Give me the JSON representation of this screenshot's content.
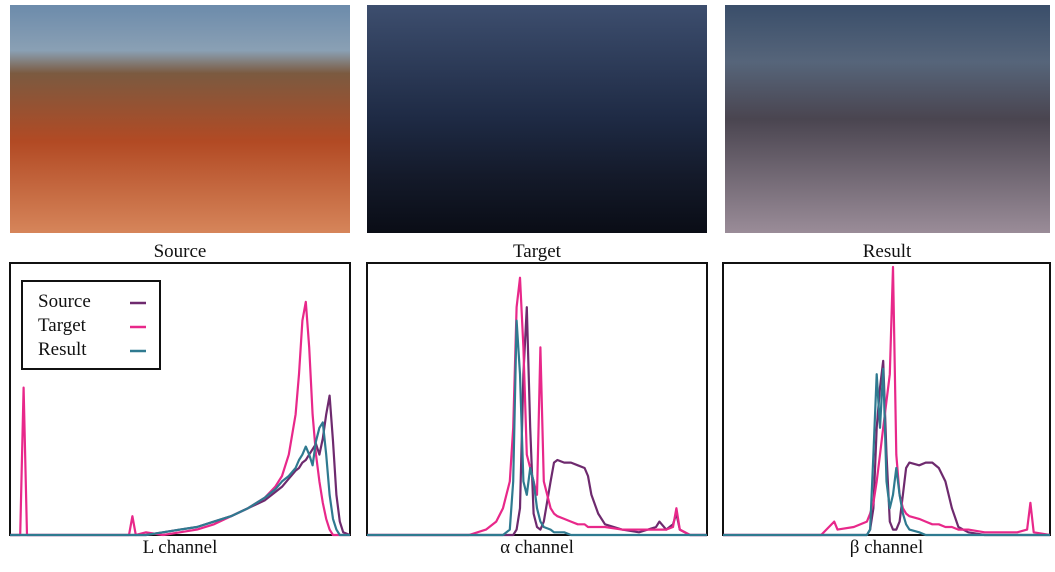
{
  "images": [
    {
      "caption": "Source"
    },
    {
      "caption": "Target"
    },
    {
      "caption": "Result"
    }
  ],
  "chart_data": [
    {
      "type": "line",
      "xlabel": "L channel",
      "legend": "upper left",
      "xlim": [
        0,
        100
      ],
      "ylim": [
        0,
        100
      ],
      "x": [
        0,
        3,
        4,
        5,
        10,
        20,
        30,
        35,
        36,
        37,
        40,
        45,
        50,
        55,
        60,
        65,
        70,
        75,
        78,
        80,
        82,
        84,
        85,
        86,
        87,
        88,
        89,
        90,
        91,
        92,
        93,
        94,
        95,
        96,
        97,
        98,
        100
      ],
      "series": [
        {
          "name": "Source",
          "color": "#6e2a6e",
          "values": [
            0,
            0,
            0,
            0,
            0,
            0,
            0,
            0,
            0,
            0,
            0,
            1,
            2,
            3,
            5,
            7,
            10,
            13,
            16,
            18,
            21,
            24,
            25,
            27,
            28,
            30,
            32,
            34,
            30,
            36,
            45,
            52,
            35,
            15,
            5,
            1,
            0
          ]
        },
        {
          "name": "Target",
          "color": "#e8288a",
          "values": [
            0,
            0,
            55,
            0,
            0,
            0,
            0,
            0,
            7,
            0,
            1,
            0,
            1,
            2,
            4,
            7,
            10,
            14,
            18,
            22,
            30,
            45,
            60,
            80,
            87,
            70,
            45,
            30,
            20,
            12,
            6,
            2,
            0,
            0,
            0,
            0,
            0
          ]
        },
        {
          "name": "Result",
          "color": "#2f7a90",
          "values": [
            0,
            0,
            0,
            0,
            0,
            0,
            0,
            0,
            0,
            0,
            0,
            1,
            2,
            3,
            5,
            7,
            10,
            14,
            17,
            20,
            22,
            25,
            28,
            30,
            33,
            30,
            26,
            35,
            40,
            42,
            30,
            15,
            6,
            2,
            0,
            0,
            0
          ]
        }
      ]
    },
    {
      "type": "line",
      "xlabel": "α channel",
      "xlim": [
        0,
        100
      ],
      "ylim": [
        0,
        100
      ],
      "x": [
        0,
        30,
        35,
        38,
        40,
        42,
        43,
        44,
        45,
        46,
        47,
        48,
        49,
        50,
        51,
        52,
        54,
        55,
        56,
        58,
        60,
        62,
        64,
        65,
        66,
        68,
        70,
        75,
        80,
        85,
        86,
        88,
        90,
        91,
        92,
        95,
        100
      ],
      "series": [
        {
          "name": "Source",
          "color": "#6e2a6e",
          "values": [
            0,
            0,
            0,
            0,
            0,
            0,
            0,
            2,
            10,
            60,
            85,
            40,
            8,
            3,
            2,
            5,
            20,
            27,
            28,
            27,
            27,
            26,
            25,
            22,
            15,
            8,
            4,
            2,
            1,
            3,
            5,
            2,
            4,
            8,
            2,
            0,
            0
          ]
        },
        {
          "name": "Target",
          "color": "#e8288a",
          "values": [
            0,
            0,
            2,
            5,
            10,
            20,
            40,
            85,
            96,
            70,
            30,
            25,
            20,
            15,
            70,
            20,
            10,
            8,
            7,
            6,
            5,
            4,
            4,
            3,
            3,
            3,
            3,
            2,
            2,
            2,
            2,
            2,
            3,
            10,
            2,
            0,
            0
          ]
        },
        {
          "name": "Result",
          "color": "#2f7a90",
          "values": [
            0,
            0,
            0,
            0,
            0,
            2,
            20,
            80,
            60,
            20,
            15,
            25,
            20,
            10,
            5,
            3,
            2,
            1,
            1,
            1,
            0,
            0,
            0,
            0,
            0,
            0,
            0,
            0,
            0,
            0,
            0,
            0,
            0,
            0,
            0,
            0,
            0
          ]
        }
      ]
    },
    {
      "type": "line",
      "xlabel": "β channel",
      "xlim": [
        0,
        100
      ],
      "ylim": [
        0,
        100
      ],
      "x": [
        0,
        30,
        34,
        35,
        40,
        44,
        45,
        46,
        47,
        48,
        49,
        50,
        51,
        52,
        53,
        54,
        55,
        56,
        57,
        60,
        62,
        64,
        66,
        68,
        70,
        72,
        75,
        80,
        90,
        93,
        94,
        95,
        100
      ],
      "series": [
        {
          "name": "Source",
          "color": "#6e2a6e",
          "values": [
            0,
            0,
            0,
            0,
            0,
            0,
            2,
            10,
            40,
            55,
            65,
            30,
            5,
            2,
            2,
            5,
            15,
            25,
            27,
            26,
            27,
            27,
            25,
            20,
            10,
            3,
            1,
            0,
            0,
            0,
            0,
            0,
            0
          ]
        },
        {
          "name": "Target",
          "color": "#e8288a",
          "values": [
            0,
            0,
            5,
            2,
            3,
            5,
            8,
            12,
            20,
            30,
            40,
            50,
            60,
            100,
            30,
            15,
            10,
            8,
            7,
            6,
            5,
            4,
            4,
            3,
            3,
            2,
            2,
            1,
            1,
            2,
            12,
            1,
            0
          ]
        },
        {
          "name": "Result",
          "color": "#2f7a90",
          "values": [
            0,
            0,
            0,
            0,
            0,
            0,
            2,
            30,
            60,
            40,
            62,
            20,
            10,
            15,
            25,
            15,
            8,
            4,
            2,
            1,
            0,
            0,
            0,
            0,
            0,
            0,
            0,
            0,
            0,
            0,
            0,
            0,
            0
          ]
        }
      ]
    }
  ]
}
